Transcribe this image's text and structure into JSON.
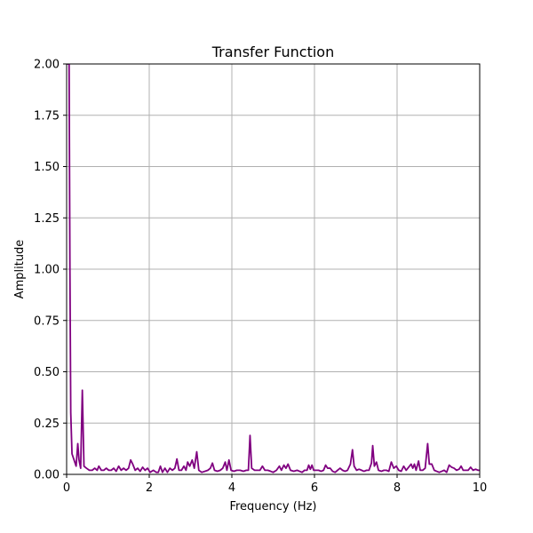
{
  "chart_data": {
    "type": "line",
    "title": "Transfer Function",
    "xlabel": "Frequency (Hz)",
    "ylabel": "Amplitude",
    "xlim": [
      0,
      10
    ],
    "ylim": [
      0,
      2.0
    ],
    "grid": true,
    "x_ticks": [
      "0",
      "2",
      "4",
      "6",
      "8",
      "10"
    ],
    "y_ticks": [
      "0.00",
      "0.25",
      "0.50",
      "0.75",
      "1.00",
      "1.25",
      "1.50",
      "1.75",
      "2.00"
    ],
    "color": "#800080",
    "series": [
      {
        "name": "",
        "points": [
          [
            0.0,
            2.0
          ],
          [
            0.03,
            2.0
          ],
          [
            0.06,
            2.0
          ],
          [
            0.08,
            1.0
          ],
          [
            0.1,
            0.3
          ],
          [
            0.13,
            0.1
          ],
          [
            0.18,
            0.07
          ],
          [
            0.23,
            0.04
          ],
          [
            0.27,
            0.15
          ],
          [
            0.3,
            0.07
          ],
          [
            0.34,
            0.03
          ],
          [
            0.38,
            0.41
          ],
          [
            0.42,
            0.04
          ],
          [
            0.48,
            0.03
          ],
          [
            0.55,
            0.02
          ],
          [
            0.62,
            0.02
          ],
          [
            0.68,
            0.03
          ],
          [
            0.74,
            0.02
          ],
          [
            0.78,
            0.04
          ],
          [
            0.84,
            0.02
          ],
          [
            0.9,
            0.02
          ],
          [
            0.96,
            0.03
          ],
          [
            1.02,
            0.02
          ],
          [
            1.08,
            0.02
          ],
          [
            1.14,
            0.03
          ],
          [
            1.2,
            0.015
          ],
          [
            1.26,
            0.04
          ],
          [
            1.32,
            0.02
          ],
          [
            1.38,
            0.03
          ],
          [
            1.44,
            0.02
          ],
          [
            1.5,
            0.03
          ],
          [
            1.55,
            0.07
          ],
          [
            1.6,
            0.05
          ],
          [
            1.66,
            0.02
          ],
          [
            1.72,
            0.03
          ],
          [
            1.78,
            0.015
          ],
          [
            1.84,
            0.035
          ],
          [
            1.9,
            0.02
          ],
          [
            1.96,
            0.03
          ],
          [
            2.02,
            0.01
          ],
          [
            2.1,
            0.02
          ],
          [
            2.17,
            0.01
          ],
          [
            2.22,
            0.01
          ],
          [
            2.27,
            0.04
          ],
          [
            2.32,
            0.01
          ],
          [
            2.38,
            0.03
          ],
          [
            2.44,
            0.01
          ],
          [
            2.5,
            0.03
          ],
          [
            2.56,
            0.02
          ],
          [
            2.62,
            0.03
          ],
          [
            2.67,
            0.075
          ],
          [
            2.72,
            0.02
          ],
          [
            2.78,
            0.02
          ],
          [
            2.84,
            0.04
          ],
          [
            2.89,
            0.02
          ],
          [
            2.93,
            0.06
          ],
          [
            2.98,
            0.04
          ],
          [
            3.04,
            0.07
          ],
          [
            3.09,
            0.03
          ],
          [
            3.15,
            0.11
          ],
          [
            3.2,
            0.02
          ],
          [
            3.27,
            0.01
          ],
          [
            3.35,
            0.015
          ],
          [
            3.42,
            0.02
          ],
          [
            3.48,
            0.03
          ],
          [
            3.53,
            0.055
          ],
          [
            3.58,
            0.02
          ],
          [
            3.65,
            0.015
          ],
          [
            3.72,
            0.02
          ],
          [
            3.78,
            0.03
          ],
          [
            3.84,
            0.06
          ],
          [
            3.88,
            0.02
          ],
          [
            3.93,
            0.07
          ],
          [
            3.98,
            0.02
          ],
          [
            4.05,
            0.015
          ],
          [
            4.12,
            0.02
          ],
          [
            4.2,
            0.02
          ],
          [
            4.28,
            0.015
          ],
          [
            4.35,
            0.02
          ],
          [
            4.4,
            0.02
          ],
          [
            4.44,
            0.19
          ],
          [
            4.48,
            0.03
          ],
          [
            4.55,
            0.02
          ],
          [
            4.62,
            0.02
          ],
          [
            4.68,
            0.02
          ],
          [
            4.74,
            0.04
          ],
          [
            4.8,
            0.02
          ],
          [
            4.87,
            0.02
          ],
          [
            4.94,
            0.015
          ],
          [
            5.0,
            0.01
          ],
          [
            5.08,
            0.02
          ],
          [
            5.15,
            0.04
          ],
          [
            5.2,
            0.02
          ],
          [
            5.26,
            0.045
          ],
          [
            5.31,
            0.03
          ],
          [
            5.36,
            0.05
          ],
          [
            5.42,
            0.02
          ],
          [
            5.5,
            0.015
          ],
          [
            5.58,
            0.02
          ],
          [
            5.64,
            0.015
          ],
          [
            5.7,
            0.01
          ],
          [
            5.76,
            0.02
          ],
          [
            5.82,
            0.02
          ],
          [
            5.86,
            0.045
          ],
          [
            5.9,
            0.025
          ],
          [
            5.94,
            0.045
          ],
          [
            5.98,
            0.02
          ],
          [
            6.04,
            0.02
          ],
          [
            6.1,
            0.02
          ],
          [
            6.16,
            0.015
          ],
          [
            6.22,
            0.02
          ],
          [
            6.27,
            0.045
          ],
          [
            6.32,
            0.03
          ],
          [
            6.38,
            0.03
          ],
          [
            6.44,
            0.015
          ],
          [
            6.5,
            0.01
          ],
          [
            6.56,
            0.02
          ],
          [
            6.62,
            0.03
          ],
          [
            6.68,
            0.02
          ],
          [
            6.74,
            0.015
          ],
          [
            6.8,
            0.02
          ],
          [
            6.87,
            0.05
          ],
          [
            6.92,
            0.12
          ],
          [
            6.96,
            0.04
          ],
          [
            7.02,
            0.02
          ],
          [
            7.08,
            0.025
          ],
          [
            7.14,
            0.02
          ],
          [
            7.2,
            0.015
          ],
          [
            7.26,
            0.02
          ],
          [
            7.32,
            0.02
          ],
          [
            7.38,
            0.055
          ],
          [
            7.41,
            0.14
          ],
          [
            7.45,
            0.04
          ],
          [
            7.5,
            0.06
          ],
          [
            7.55,
            0.02
          ],
          [
            7.62,
            0.015
          ],
          [
            7.68,
            0.02
          ],
          [
            7.74,
            0.02
          ],
          [
            7.8,
            0.015
          ],
          [
            7.86,
            0.06
          ],
          [
            7.92,
            0.03
          ],
          [
            7.98,
            0.04
          ],
          [
            8.04,
            0.02
          ],
          [
            8.1,
            0.015
          ],
          [
            8.16,
            0.04
          ],
          [
            8.22,
            0.02
          ],
          [
            8.28,
            0.035
          ],
          [
            8.34,
            0.05
          ],
          [
            8.38,
            0.03
          ],
          [
            8.42,
            0.05
          ],
          [
            8.46,
            0.02
          ],
          [
            8.52,
            0.065
          ],
          [
            8.56,
            0.02
          ],
          [
            8.62,
            0.02
          ],
          [
            8.68,
            0.03
          ],
          [
            8.74,
            0.15
          ],
          [
            8.78,
            0.05
          ],
          [
            8.84,
            0.05
          ],
          [
            8.9,
            0.02
          ],
          [
            8.96,
            0.015
          ],
          [
            9.02,
            0.01
          ],
          [
            9.08,
            0.015
          ],
          [
            9.14,
            0.02
          ],
          [
            9.2,
            0.01
          ],
          [
            9.26,
            0.045
          ],
          [
            9.32,
            0.035
          ],
          [
            9.38,
            0.03
          ],
          [
            9.44,
            0.02
          ],
          [
            9.5,
            0.025
          ],
          [
            9.55,
            0.04
          ],
          [
            9.6,
            0.02
          ],
          [
            9.66,
            0.02
          ],
          [
            9.72,
            0.02
          ],
          [
            9.78,
            0.035
          ],
          [
            9.84,
            0.02
          ],
          [
            9.9,
            0.025
          ],
          [
            9.96,
            0.02
          ],
          [
            10.0,
            0.02
          ]
        ]
      }
    ]
  }
}
